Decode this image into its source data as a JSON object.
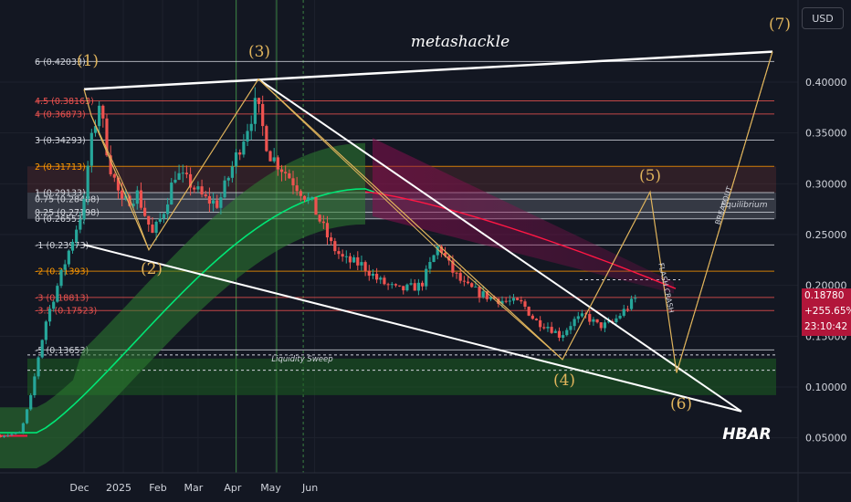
{
  "chart_data": {
    "type": "line",
    "ticker": "HBAR",
    "watermark": "metashackle",
    "currency": "USD",
    "last_price": "0.18780",
    "change_pct": "+255.65%",
    "countdown": "23:10:42",
    "x_labels": [
      "Dec",
      "2025",
      "Feb",
      "Mar",
      "Apr",
      "May",
      "Jun"
    ],
    "y_ticks": [
      "0.40000",
      "0.35000",
      "0.30000",
      "0.25000",
      "0.20000",
      "0.15000",
      "0.10000",
      "0.05000"
    ],
    "ylim": [
      0.04,
      0.44
    ],
    "colors": {
      "background": "#131722",
      "up": "#26a69a",
      "down": "#ef5350",
      "wave": "#e0b45c",
      "trendline": "#ffffff",
      "ma": "#00e676",
      "price_label": "#b2163a"
    },
    "fib_levels": [
      {
        "label": "6 (0.42033)",
        "value": 0.42033,
        "color": "#d1d4dc"
      },
      {
        "label": "4.5 (0.38163)",
        "value": 0.38163,
        "color": "#ef5350"
      },
      {
        "label": "4 (0.36873)",
        "value": 0.36873,
        "color": "#ef5350"
      },
      {
        "label": "3 (0.34293)",
        "value": 0.34293,
        "color": "#d1d4dc"
      },
      {
        "label": "2 (0.31713)",
        "value": 0.31713,
        "color": "#ff9800"
      },
      {
        "label": "1 (0.29133)",
        "value": 0.29133,
        "color": "#d1d4dc"
      },
      {
        "label": "0.75 (0.28488)",
        "value": 0.28488,
        "color": "#d1d4dc"
      },
      {
        "label": "0.25 (0.27198)",
        "value": 0.27198,
        "color": "#d1d4dc"
      },
      {
        "label": "0 (0.26553)",
        "value": 0.26553,
        "color": "#d1d4dc"
      },
      {
        "label": "-1 (0.23973)",
        "value": 0.23973,
        "color": "#d1d4dc"
      },
      {
        "label": "-2 (0.21393)",
        "value": 0.21393,
        "color": "#ff9800"
      },
      {
        "label": "-3 (0.18813)",
        "value": 0.18813,
        "color": "#ef5350"
      },
      {
        "label": "-3.5 (0.17523)",
        "value": 0.17523,
        "color": "#ef5350"
      },
      {
        "label": "-5 (0.13653)",
        "value": 0.13653,
        "color": "#d1d4dc"
      }
    ],
    "waves": [
      {
        "label": "(1)",
        "t": 12,
        "price": 0.393
      },
      {
        "label": "(2)",
        "t": 54,
        "price": 0.24
      },
      {
        "label": "(3)",
        "t": 136,
        "price": 0.403
      },
      {
        "label": "(4)",
        "t": 376,
        "price": 0.127
      },
      {
        "label": "(5)",
        "t": 434,
        "price": 0.292
      },
      {
        "label": "(6)",
        "t": 460,
        "price": 0.114
      },
      {
        "label": "(7)",
        "t": 548,
        "price": 0.43
      }
    ],
    "annotations": [
      "Liquidity Sweep",
      "Equilibrium",
      "FLASH CRASH",
      "BREAKOUT"
    ]
  }
}
